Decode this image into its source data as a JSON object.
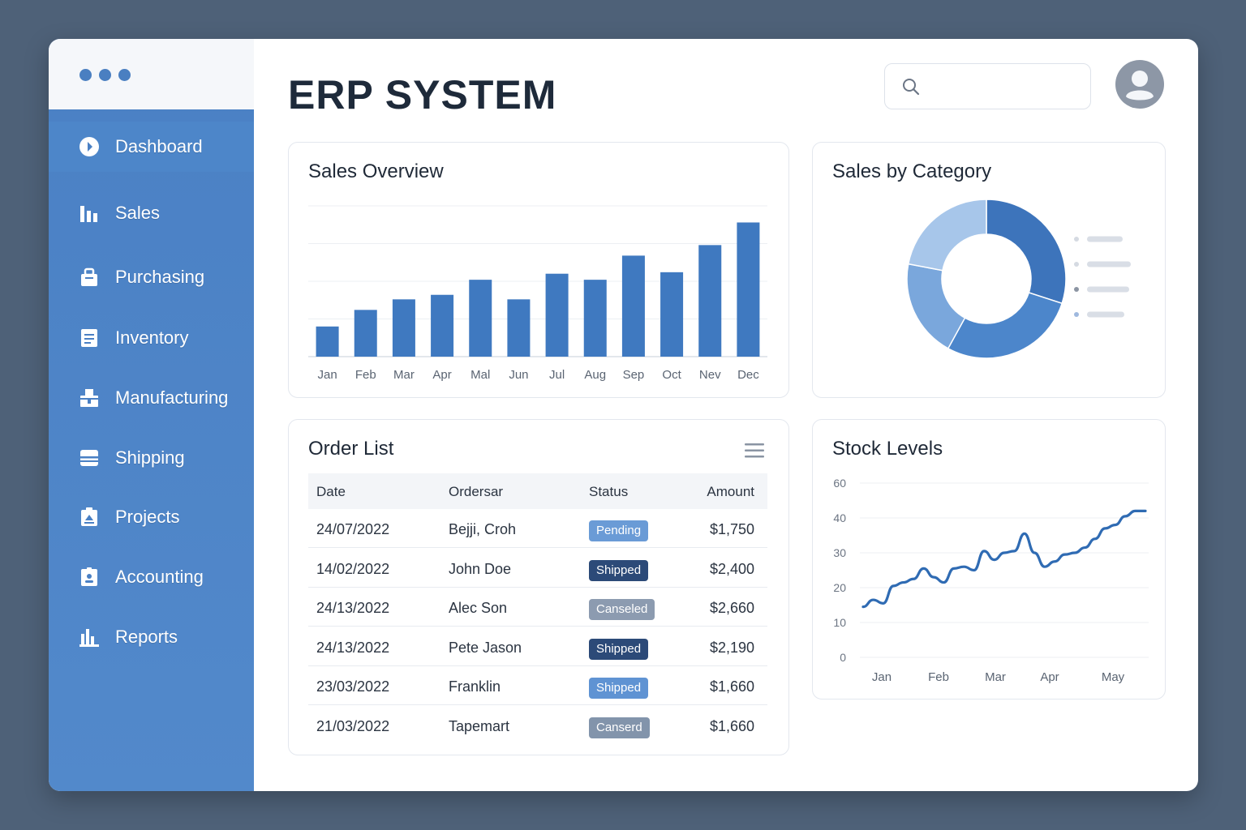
{
  "app": {
    "title": "ERP SYSTEM"
  },
  "sidebar": {
    "items": [
      {
        "label": "Dashboard",
        "icon": "dashboard-icon",
        "active": true
      },
      {
        "label": "Sales",
        "icon": "bar-chart-icon"
      },
      {
        "label": "Purchasing",
        "icon": "bag-icon"
      },
      {
        "label": "Inventory",
        "icon": "document-icon"
      },
      {
        "label": "Manufacturing",
        "icon": "factory-icon"
      },
      {
        "label": "Shipping",
        "icon": "box-icon"
      },
      {
        "label": "Projects",
        "icon": "clipboard-icon"
      },
      {
        "label": "Accounting",
        "icon": "id-card-icon"
      },
      {
        "label": "Reports",
        "icon": "reports-icon"
      }
    ]
  },
  "search": {
    "placeholder": "",
    "icon": "search-icon"
  },
  "colors": {
    "accent": "#3f79c0",
    "sidebar": "#4a80c4",
    "pending": "#6a9bd6",
    "shipped_dark": "#2c4a78",
    "shipped_light": "#5f93d3",
    "canceled": "#8c9bb0"
  },
  "sales_overview": {
    "title": "Sales Overview",
    "chart_data": {
      "type": "bar",
      "categories": [
        "Jan",
        "Feb",
        "Mar",
        "Apr",
        "Mal",
        "Jun",
        "Jul",
        "Aug",
        "Sep",
        "Oct",
        "Nev",
        "Dec"
      ],
      "values": [
        20,
        31,
        38,
        41,
        51,
        38,
        55,
        51,
        67,
        56,
        74,
        89
      ],
      "ylim": [
        0,
        100
      ],
      "grid": true
    }
  },
  "sales_category": {
    "title": "Sales by Category",
    "chart_data": {
      "type": "pie",
      "donut": true,
      "values": [
        30,
        28,
        20,
        22
      ],
      "colors": [
        "#3d74bb",
        "#4c86cb",
        "#7aa7dc",
        "#a7c6ea"
      ],
      "legend_placement": "right"
    }
  },
  "order_list": {
    "title": "Order List",
    "columns": [
      "Date",
      "Ordersar",
      "Status",
      "Amount"
    ],
    "rows": [
      {
        "date": "24/07/2022",
        "order": "Bejji, Croh",
        "status": "Pending",
        "status_color": "#6a9bd6",
        "amount": "$1,750"
      },
      {
        "date": "14/02/2022",
        "order": "John Doe",
        "status": "Shipped",
        "status_color": "#2c4a78",
        "amount": "$2,400"
      },
      {
        "date": "24/13/2022",
        "order": "Alec Son",
        "status": "Canseled",
        "status_color": "#8c9bb0",
        "amount": "$2,660"
      },
      {
        "date": "24/13/2022",
        "order": "Pete Jason",
        "status": "Shipped",
        "status_color": "#2c4a78",
        "amount": "$2,190"
      },
      {
        "date": "23/03/2022",
        "order": "Franklin",
        "status": "Shipped",
        "status_color": "#5f93d3",
        "amount": "$1,660"
      },
      {
        "date": "21/03/2022",
        "order": "Tapemart",
        "status": "Canserd",
        "status_color": "#8294ab",
        "amount": "$1,660"
      }
    ]
  },
  "stock_levels": {
    "title": "Stock Levels",
    "chart_data": {
      "type": "line",
      "x_ticks": [
        "Jan",
        "Feb",
        "Mar",
        "Apr",
        "May"
      ],
      "y_ticks": [
        0,
        10,
        20,
        30,
        40,
        60
      ],
      "x": [
        0,
        0.15,
        0.3,
        0.45,
        0.6,
        0.75,
        0.9,
        1.05,
        1.2,
        1.35,
        1.5,
        1.65,
        1.8,
        1.95,
        2.1,
        2.25,
        2.4,
        2.55,
        2.7,
        2.85,
        3.0,
        3.15,
        3.3,
        3.45,
        3.6,
        3.75,
        3.9,
        4.05,
        4.2
      ],
      "y": [
        14.5,
        16.5,
        15.5,
        20.5,
        21.5,
        22.5,
        25.5,
        23,
        21.5,
        25.5,
        26,
        25,
        30.5,
        28,
        30,
        30.5,
        35.5,
        30,
        26,
        27.5,
        29.5,
        30,
        31.5,
        34,
        37,
        38,
        41,
        44,
        44
      ],
      "grid": true
    }
  }
}
